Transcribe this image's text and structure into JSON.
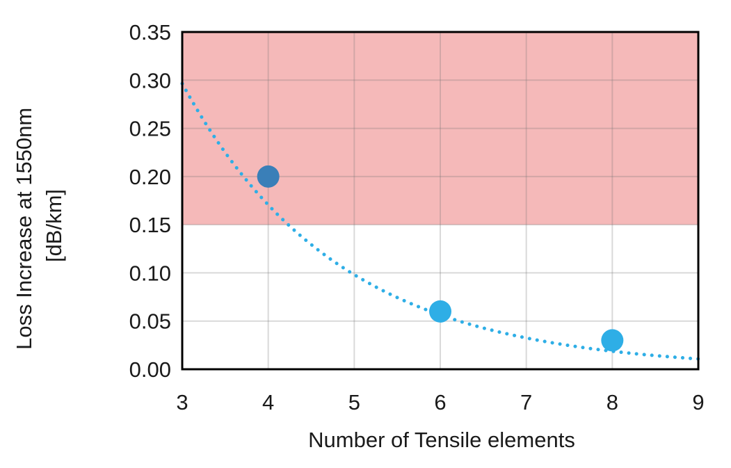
{
  "chart_data": {
    "type": "scatter",
    "title": "",
    "xlabel": "Number of Tensile elements",
    "ylabel_lines": [
      "Loss Increase at 1550nm",
      "[dB/km]"
    ],
    "xlim": [
      3,
      9
    ],
    "ylim": [
      0,
      0.35
    ],
    "x_ticks": [
      3,
      4,
      5,
      6,
      7,
      8,
      9
    ],
    "y_ticks": [
      0,
      0.05,
      0.1,
      0.15,
      0.2,
      0.25,
      0.3,
      0.35
    ],
    "x_tick_labels": [
      "3",
      "4",
      "5",
      "6",
      "7",
      "8",
      "9"
    ],
    "y_tick_labels": [
      "0.00",
      "0.05",
      "0.10",
      "0.15",
      "0.20",
      "0.25",
      "0.30",
      "0.35"
    ],
    "grid": true,
    "points": [
      {
        "x": 4,
        "y": 0.2,
        "color": "#3a7fb8"
      },
      {
        "x": 6,
        "y": 0.06,
        "color": "#2eaee6"
      },
      {
        "x": 8,
        "y": 0.03,
        "color": "#2eaee6"
      }
    ],
    "trendline": {
      "style": "dotted",
      "type": "exponential",
      "color": "#2eaee6",
      "a": 1.5567,
      "b": -0.5528
    },
    "shaded_region": {
      "y_from": 0.15,
      "y_to": 0.35,
      "color": "#f5b9b9"
    }
  }
}
